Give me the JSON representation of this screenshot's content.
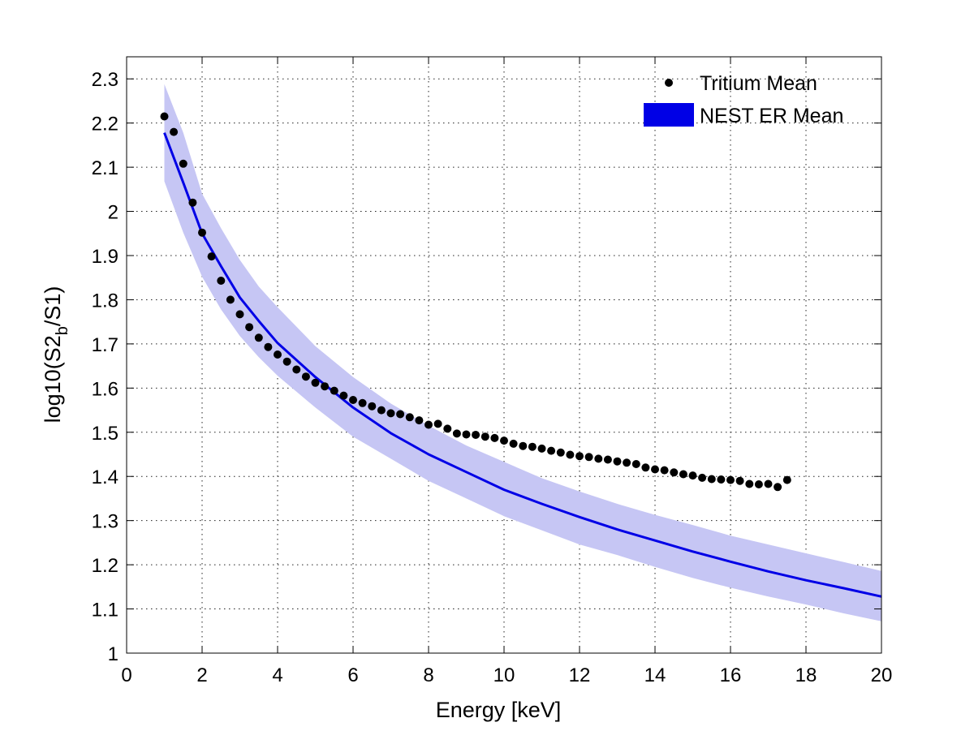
{
  "chart_data": {
    "type": "line",
    "title": "",
    "xlabel": "Energy [keV]",
    "ylabel": {
      "prefix": "log10(S2",
      "subscript": "b",
      "suffix": "/S1)"
    },
    "xlim": [
      0,
      20
    ],
    "ylim": [
      1,
      2.35
    ],
    "xticks": [
      0,
      2,
      4,
      6,
      8,
      10,
      12,
      14,
      16,
      18,
      20
    ],
    "yticks": [
      1,
      1.1,
      1.2,
      1.3,
      1.4,
      1.5,
      1.6,
      1.7,
      1.8,
      1.9,
      2,
      2.1,
      2.2,
      2.3
    ],
    "ytick_labels": [
      "1",
      "1.1",
      "1.2",
      "1.3",
      "1.4",
      "1.5",
      "1.6",
      "1.7",
      "1.8",
      "1.9",
      "2",
      "2.1",
      "2.2",
      "2.3"
    ],
    "xtick_labels": [
      "0",
      "2",
      "4",
      "6",
      "8",
      "10",
      "12",
      "14",
      "16",
      "18",
      "20"
    ],
    "grid": true,
    "legend_position": "top-right",
    "series": [
      {
        "name": "Tritium Mean",
        "kind": "scatter",
        "color": "#000000",
        "x": [
          1.0,
          1.25,
          1.5,
          1.75,
          2.0,
          2.25,
          2.5,
          2.75,
          3.0,
          3.25,
          3.5,
          3.75,
          4.0,
          4.25,
          4.5,
          4.75,
          5.0,
          5.25,
          5.5,
          5.75,
          6.0,
          6.25,
          6.5,
          6.75,
          7.0,
          7.25,
          7.5,
          7.75,
          8.0,
          8.25,
          8.5,
          8.75,
          9.0,
          9.25,
          9.5,
          9.75,
          10.0,
          10.25,
          10.5,
          10.75,
          11.0,
          11.25,
          11.5,
          11.75,
          12.0,
          12.25,
          12.5,
          12.75,
          13.0,
          13.25,
          13.5,
          13.75,
          14.0,
          14.25,
          14.5,
          14.75,
          15.0,
          15.25,
          15.5,
          15.75,
          16.0,
          16.25,
          16.5,
          16.75,
          17.0,
          17.25,
          17.5
        ],
        "y": [
          2.215,
          2.18,
          2.108,
          2.02,
          1.952,
          1.898,
          1.843,
          1.8,
          1.767,
          1.738,
          1.714,
          1.693,
          1.676,
          1.66,
          1.642,
          1.626,
          1.612,
          1.604,
          1.594,
          1.583,
          1.573,
          1.566,
          1.559,
          1.55,
          1.543,
          1.541,
          1.534,
          1.527,
          1.517,
          1.519,
          1.508,
          1.497,
          1.495,
          1.494,
          1.49,
          1.487,
          1.481,
          1.474,
          1.469,
          1.467,
          1.463,
          1.458,
          1.454,
          1.449,
          1.446,
          1.444,
          1.44,
          1.438,
          1.434,
          1.431,
          1.428,
          1.42,
          1.416,
          1.414,
          1.409,
          1.405,
          1.402,
          1.397,
          1.394,
          1.393,
          1.392,
          1.39,
          1.383,
          1.382,
          1.383,
          1.376,
          1.392
        ]
      },
      {
        "name": "NEST ER Mean",
        "kind": "line_band",
        "color": "#0000e6",
        "band_color": "#c6c6f4",
        "x": [
          1,
          1.5,
          2,
          2.5,
          3,
          3.5,
          4,
          5,
          6,
          7,
          8,
          9,
          10,
          11,
          12,
          13,
          14,
          15,
          16,
          17,
          18,
          19,
          20
        ],
        "y": [
          2.178,
          2.065,
          1.95,
          1.876,
          1.805,
          1.752,
          1.702,
          1.625,
          1.556,
          1.498,
          1.45,
          1.41,
          1.37,
          1.338,
          1.308,
          1.28,
          1.255,
          1.23,
          1.207,
          1.185,
          1.165,
          1.147,
          1.128
        ],
        "upper": [
          2.288,
          2.178,
          2.04,
          1.962,
          1.89,
          1.83,
          1.783,
          1.695,
          1.625,
          1.565,
          1.515,
          1.47,
          1.433,
          1.396,
          1.366,
          1.338,
          1.313,
          1.29,
          1.266,
          1.246,
          1.226,
          1.206,
          1.186
        ],
        "lower": [
          2.068,
          1.952,
          1.852,
          1.778,
          1.718,
          1.67,
          1.628,
          1.556,
          1.49,
          1.44,
          1.39,
          1.35,
          1.31,
          1.278,
          1.246,
          1.222,
          1.195,
          1.17,
          1.148,
          1.128,
          1.11,
          1.09,
          1.072
        ]
      }
    ]
  }
}
